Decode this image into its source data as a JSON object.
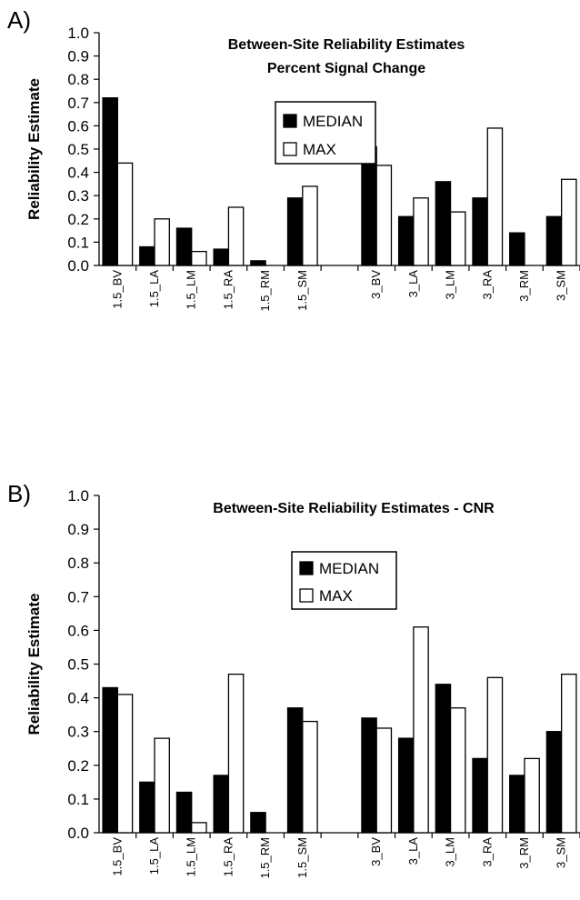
{
  "chart_data": [
    {
      "panel": "A)",
      "type": "bar",
      "title": [
        "Between-Site Reliability Estimates",
        "Percent Signal Change"
      ],
      "ylabel": "Reliability Estimate",
      "xlabel": "",
      "ylim": [
        0,
        1.0
      ],
      "ytick_labels": [
        "0.0",
        "0.1",
        "0.2",
        "0.3",
        "0.4",
        "0.5",
        "0.6",
        "0.7",
        "0.8",
        "0.9",
        "1.0"
      ],
      "grid": false,
      "legend_position": "center-right",
      "categories": [
        "1.5_BV",
        "1.5_LA",
        "1.5_LM",
        "1.5_RA",
        "1.5_RM",
        "1.5_SM",
        "",
        "3_BV",
        "3_LA",
        "3_LM",
        "3_RA",
        "3_RM",
        "3_SM"
      ],
      "series": [
        {
          "name": "MEDIAN",
          "color": "#000000",
          "values": [
            0.72,
            0.08,
            0.16,
            0.07,
            0.02,
            0.29,
            null,
            0.51,
            0.21,
            0.36,
            0.29,
            0.14,
            0.21
          ]
        },
        {
          "name": "MAX",
          "color": "#ffffff",
          "values": [
            0.44,
            0.2,
            0.06,
            0.25,
            0.0,
            0.34,
            null,
            0.43,
            0.29,
            0.23,
            0.59,
            0.0,
            0.37
          ]
        }
      ]
    },
    {
      "panel": "B)",
      "type": "bar",
      "title": [
        "Between-Site Reliability Estimates - CNR"
      ],
      "ylabel": "Reliability Estimate",
      "xlabel": "",
      "ylim": [
        0,
        1.0
      ],
      "ytick_labels": [
        "0.0",
        "0.1",
        "0.2",
        "0.3",
        "0.4",
        "0.5",
        "0.6",
        "0.7",
        "0.8",
        "0.9",
        "1.0"
      ],
      "grid": false,
      "legend_position": "center",
      "categories": [
        "1.5_BV",
        "1.5_LA",
        "1.5_LM",
        "1.5_RA",
        "1.5_RM",
        "1.5_SM",
        "",
        "3_BV",
        "3_LA",
        "3_LM",
        "3_RA",
        "3_RM",
        "3_SM"
      ],
      "series": [
        {
          "name": "MEDIAN",
          "color": "#000000",
          "values": [
            0.43,
            0.15,
            0.12,
            0.17,
            0.06,
            0.37,
            null,
            0.34,
            0.28,
            0.44,
            0.22,
            0.17,
            0.3
          ]
        },
        {
          "name": "MAX",
          "color": "#ffffff",
          "values": [
            0.41,
            0.28,
            0.03,
            0.47,
            0.0,
            0.33,
            null,
            0.31,
            0.61,
            0.37,
            0.46,
            0.22,
            0.47
          ]
        }
      ]
    }
  ]
}
